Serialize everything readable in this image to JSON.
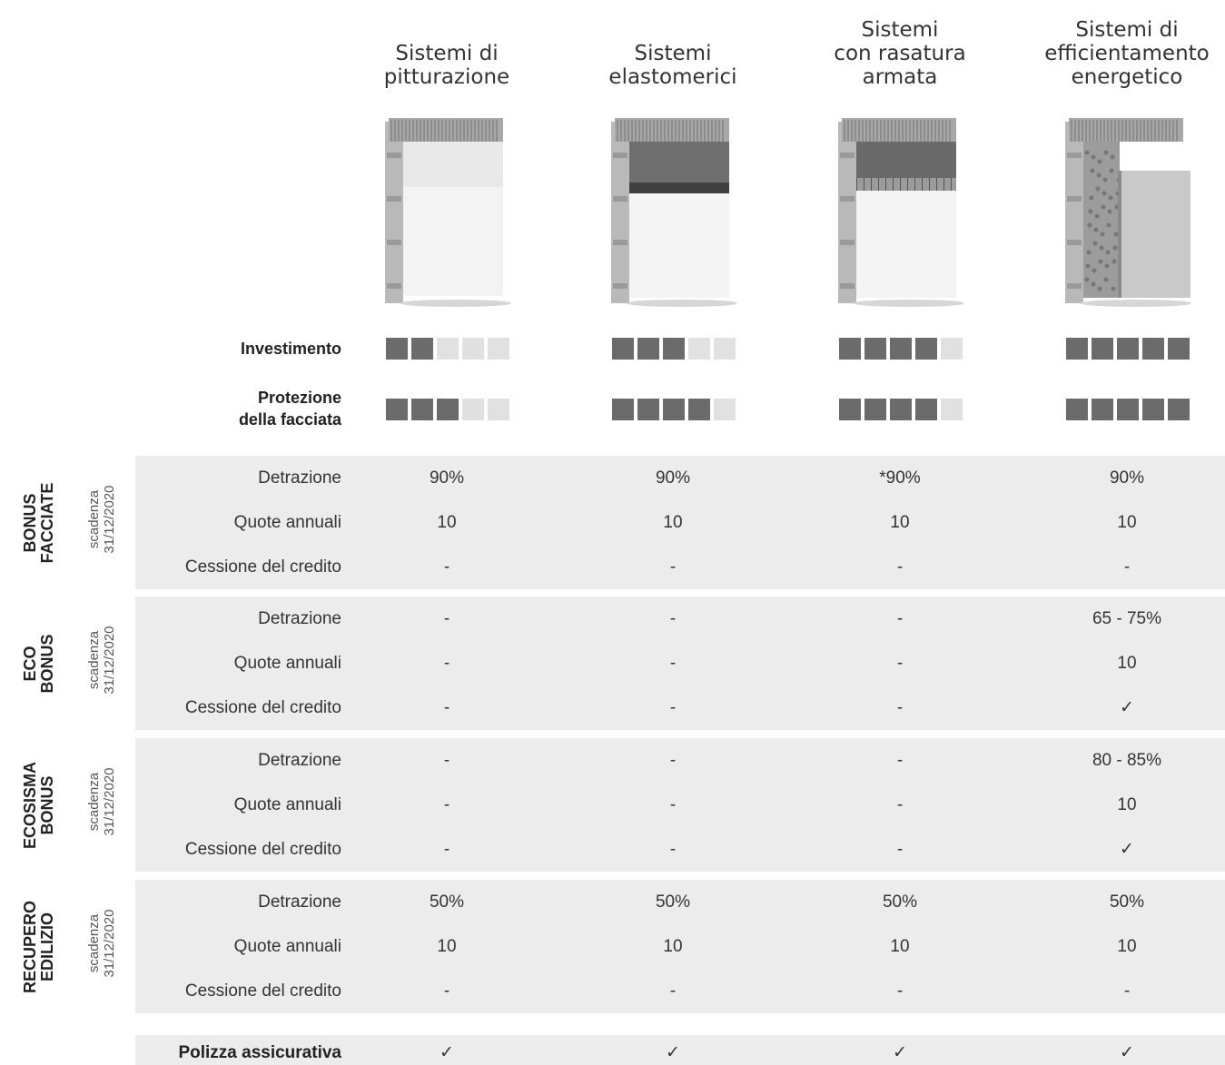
{
  "columns": [
    {
      "title": "Sistemi di\npitturazione",
      "investimento": 2,
      "protezione": 3
    },
    {
      "title": "Sistemi\nelastomerici",
      "investimento": 3,
      "protezione": 4
    },
    {
      "title": "Sistemi\ncon rasatura\narmata",
      "investimento": 4,
      "protezione": 4
    },
    {
      "title": "Sistemi di\nefficientamento\nenergetico",
      "investimento": 5,
      "protezione": 5
    }
  ],
  "rating_scale_max": 5,
  "ratings": {
    "investimento_label": "Investimento",
    "protezione_label": "Protezione\ndella facciata"
  },
  "row_labels": {
    "detrazione": "Detrazione",
    "quote": "Quote annuali",
    "cessione": "Cessione del credito"
  },
  "groups": [
    {
      "name": "BONUS\nFACCIATE",
      "expiry": "scadenza\n31/12/2020",
      "rows": [
        [
          "90%",
          "90%",
          "*90%",
          "90%"
        ],
        [
          "10",
          "10",
          "10",
          "10"
        ],
        [
          "-",
          "-",
          "-",
          "-"
        ]
      ]
    },
    {
      "name": "ECO\nBONUS",
      "expiry": "scadenza\n31/12/2020",
      "rows": [
        [
          "-",
          "-",
          "-",
          "65 - 75%"
        ],
        [
          "-",
          "-",
          "-",
          "10"
        ],
        [
          "-",
          "-",
          "-",
          "✓"
        ]
      ]
    },
    {
      "name": "ECOSISMA\nBONUS",
      "expiry": "scadenza\n31/12/2020",
      "rows": [
        [
          "-",
          "-",
          "-",
          "80 - 85%"
        ],
        [
          "-",
          "-",
          "-",
          "10"
        ],
        [
          "-",
          "-",
          "-",
          "✓"
        ]
      ]
    },
    {
      "name": "RECUPERO\nEDILIZIO",
      "expiry": "scadenza\n31/12/2020",
      "rows": [
        [
          "50%",
          "50%",
          "50%",
          "50%"
        ],
        [
          "10",
          "10",
          "10",
          "10"
        ],
        [
          "-",
          "-",
          "-",
          "-"
        ]
      ]
    }
  ],
  "polizza": {
    "label": "Polizza assicurativa",
    "values": [
      "✓",
      "✓",
      "✓",
      "✓"
    ]
  },
  "wall_icons": [
    "wall-paint-system-icon",
    "wall-elastomeric-system-icon",
    "wall-reinforced-skim-system-icon",
    "wall-insulation-system-icon"
  ]
}
